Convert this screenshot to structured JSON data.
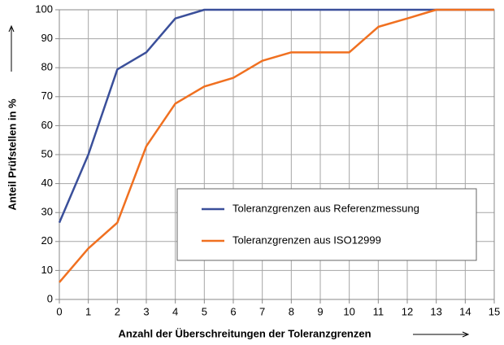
{
  "chart_data": {
    "type": "line",
    "x": [
      0,
      1,
      2,
      3,
      4,
      5,
      6,
      7,
      8,
      9,
      10,
      11,
      12,
      13,
      14,
      15
    ],
    "series": [
      {
        "name": "Toleranzgrenzen aus Referenzmessung",
        "color": "#3a4f9a",
        "values": [
          26.5,
          50,
          79.4,
          85.3,
          97,
          100,
          100,
          100,
          100,
          100,
          100,
          100,
          100,
          100,
          100,
          100
        ]
      },
      {
        "name": "Toleranzgrenzen aus ISO12999",
        "color": "#f07020",
        "values": [
          5.9,
          17.6,
          26.5,
          52.9,
          67.6,
          73.5,
          76.5,
          82.4,
          85.3,
          85.3,
          85.3,
          94.1,
          97,
          100,
          100,
          100
        ]
      }
    ],
    "xlabel": "Anzahl der Überschreitungen der Toleranzgrenzen",
    "ylabel": "Anteil Prüfstellen in %",
    "xlim": [
      0,
      15
    ],
    "xticks": [
      0,
      1,
      2,
      3,
      4,
      5,
      6,
      7,
      8,
      9,
      10,
      11,
      12,
      13,
      14,
      15
    ],
    "ylim": [
      0,
      100
    ],
    "yticks": [
      0,
      10,
      20,
      30,
      40,
      50,
      60,
      70,
      80,
      90,
      100
    ],
    "grid": true,
    "legend": "lower right"
  }
}
